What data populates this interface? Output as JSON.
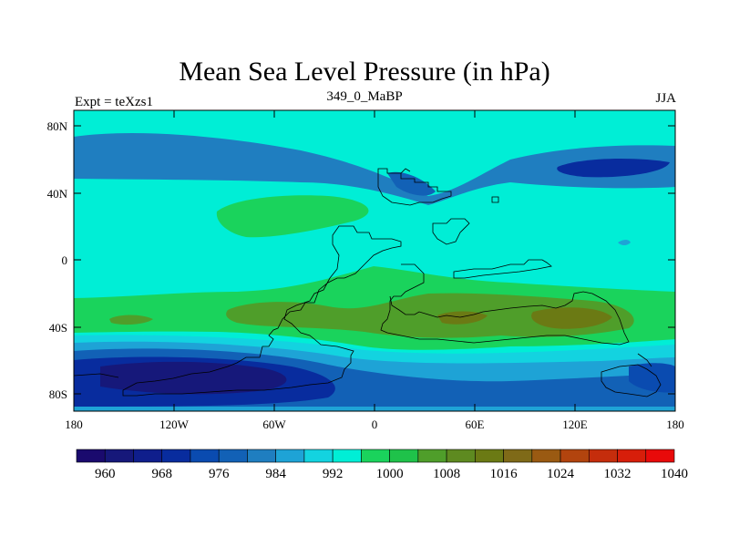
{
  "title": "Mean Sea Level Pressure (in hPa)",
  "experiment_label": "Expt = teXzs1",
  "run_label": "349_0_MaBP",
  "season_label": "JJA",
  "map": {
    "lat_ticks": [
      "80N",
      "40N",
      "0",
      "40S",
      "80S"
    ],
    "lon_ticks": [
      "180",
      "120W",
      "60W",
      "0",
      "60E",
      "120E",
      "180"
    ]
  },
  "colorbar": {
    "colors": [
      "#1a0a6e",
      "#16187a",
      "#0f1e8c",
      "#082c9e",
      "#0a4bb0",
      "#1261b6",
      "#1f7ec0",
      "#1ea3d6",
      "#13d3e0",
      "#00eed6",
      "#1ad35c",
      "#1fc24a",
      "#4f9e2a",
      "#5e8a20",
      "#6b7a14",
      "#7f6a18",
      "#9a5a12",
      "#b2440e",
      "#c52d0c",
      "#d71e0a",
      "#e80a0a"
    ],
    "labels": [
      "960",
      "968",
      "976",
      "984",
      "992",
      "1000",
      "1008",
      "1016",
      "1024",
      "1032",
      "1040"
    ]
  }
}
